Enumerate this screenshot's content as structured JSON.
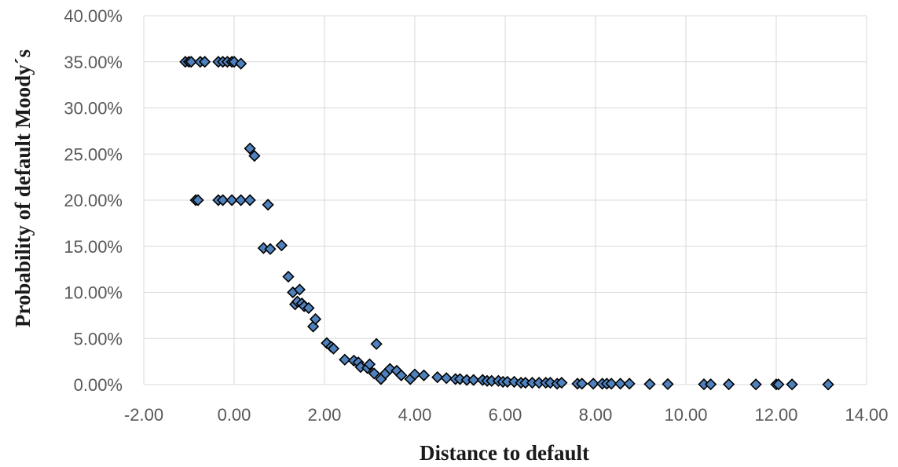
{
  "chart_data": {
    "type": "scatter",
    "title": "",
    "xlabel": "Distance to default",
    "ylabel": "Probability of default Moody´s",
    "xlim": [
      -2,
      14
    ],
    "ylim": [
      0,
      0.4
    ],
    "x_ticks": [
      "-2.00",
      "0.00",
      "2.00",
      "4.00",
      "6.00",
      "8.00",
      "10.00",
      "12.00",
      "14.00"
    ],
    "y_ticks": [
      "0.00%",
      "5.00%",
      "10.00%",
      "15.00%",
      "20.00%",
      "25.00%",
      "30.00%",
      "35.00%",
      "40.00%"
    ],
    "grid": "both",
    "legend": "none",
    "colors": {
      "marker_fill": "#4f81bd",
      "marker_edge": "#000000",
      "grid": "#d9d9d9",
      "tick_text": "#595959"
    },
    "series": [
      {
        "points": [
          [
            -1.08,
            0.35
          ],
          [
            -1.0,
            0.35
          ],
          [
            -0.95,
            0.35
          ],
          [
            -0.75,
            0.35
          ],
          [
            -0.65,
            0.35
          ],
          [
            -0.35,
            0.35
          ],
          [
            -0.25,
            0.35
          ],
          [
            -0.15,
            0.35
          ],
          [
            -0.05,
            0.35
          ],
          [
            0.0,
            0.35
          ],
          [
            0.15,
            0.348
          ],
          [
            0.35,
            0.256
          ],
          [
            0.45,
            0.248
          ],
          [
            -0.85,
            0.2
          ],
          [
            -0.8,
            0.2
          ],
          [
            -0.35,
            0.2
          ],
          [
            -0.25,
            0.2
          ],
          [
            -0.05,
            0.2
          ],
          [
            0.15,
            0.2
          ],
          [
            0.35,
            0.2
          ],
          [
            0.75,
            0.195
          ],
          [
            0.65,
            0.148
          ],
          [
            0.8,
            0.147
          ],
          [
            1.05,
            0.151
          ],
          [
            1.2,
            0.117
          ],
          [
            1.3,
            0.1
          ],
          [
            1.35,
            0.087
          ],
          [
            1.4,
            0.09
          ],
          [
            1.45,
            0.103
          ],
          [
            1.5,
            0.088
          ],
          [
            1.55,
            0.085
          ],
          [
            1.65,
            0.083
          ],
          [
            1.75,
            0.063
          ],
          [
            1.8,
            0.071
          ],
          [
            2.05,
            0.045
          ],
          [
            2.15,
            0.041
          ],
          [
            2.2,
            0.039
          ],
          [
            2.45,
            0.027
          ],
          [
            2.65,
            0.026
          ],
          [
            2.75,
            0.024
          ],
          [
            2.8,
            0.019
          ],
          [
            2.95,
            0.018
          ],
          [
            3.0,
            0.022
          ],
          [
            3.1,
            0.012
          ],
          [
            3.15,
            0.044
          ],
          [
            3.25,
            0.006
          ],
          [
            3.35,
            0.012
          ],
          [
            3.45,
            0.017
          ],
          [
            3.6,
            0.015
          ],
          [
            3.7,
            0.01
          ],
          [
            3.9,
            0.006
          ],
          [
            4.0,
            0.011
          ],
          [
            4.2,
            0.01
          ],
          [
            4.5,
            0.008
          ],
          [
            4.7,
            0.007
          ],
          [
            4.9,
            0.006
          ],
          [
            5.0,
            0.006
          ],
          [
            5.15,
            0.005
          ],
          [
            5.3,
            0.005
          ],
          [
            5.5,
            0.005
          ],
          [
            5.6,
            0.004
          ],
          [
            5.7,
            0.004
          ],
          [
            5.85,
            0.004
          ],
          [
            5.95,
            0.003
          ],
          [
            6.05,
            0.003
          ],
          [
            6.2,
            0.003
          ],
          [
            6.35,
            0.002
          ],
          [
            6.45,
            0.002
          ],
          [
            6.6,
            0.002
          ],
          [
            6.75,
            0.002
          ],
          [
            6.9,
            0.002
          ],
          [
            7.0,
            0.002
          ],
          [
            7.15,
            0.001
          ],
          [
            7.25,
            0.002
          ],
          [
            7.6,
            0.001
          ],
          [
            7.7,
            0.001
          ],
          [
            7.95,
            0.001
          ],
          [
            8.15,
            0.001
          ],
          [
            8.25,
            0.001
          ],
          [
            8.35,
            0.001
          ],
          [
            8.55,
            0.001
          ],
          [
            8.75,
            0.001
          ],
          [
            9.2,
            0.0005
          ],
          [
            9.6,
            0.0005
          ],
          [
            10.4,
            0.0003
          ],
          [
            10.55,
            0.0003
          ],
          [
            10.95,
            0.0003
          ],
          [
            11.55,
            0.0002
          ],
          [
            12.0,
            0.0002
          ],
          [
            12.05,
            0.0002
          ],
          [
            12.35,
            0.0002
          ],
          [
            13.15,
            0.0001
          ]
        ]
      }
    ]
  }
}
